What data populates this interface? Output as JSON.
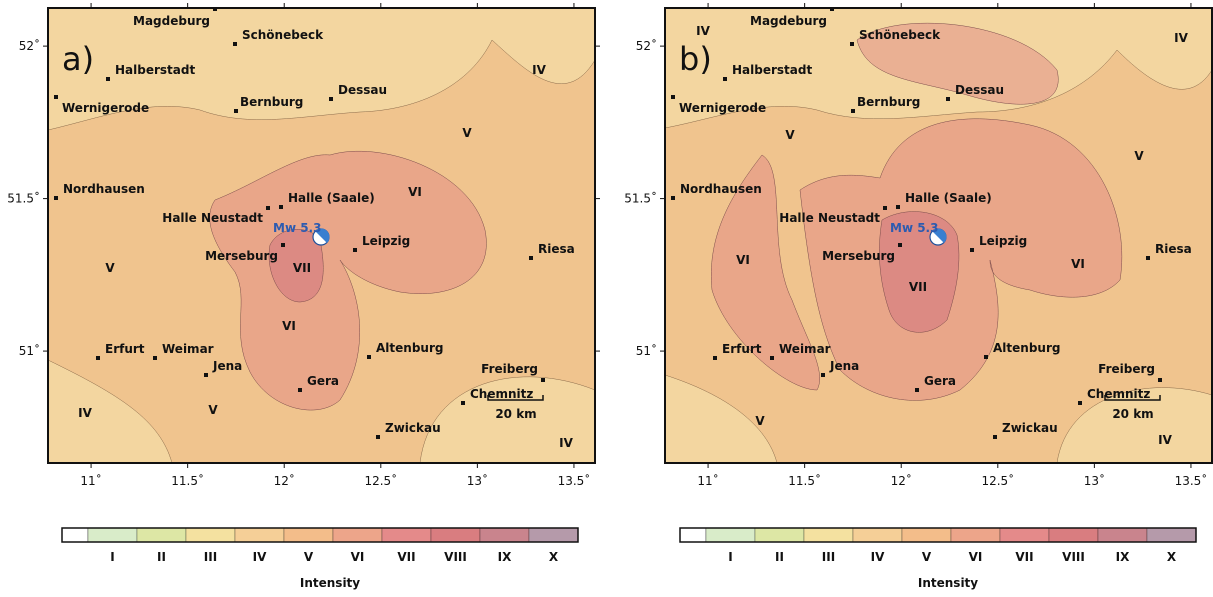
{
  "panels": [
    {
      "label": "a)",
      "event": "Mw 5.3",
      "scalebar": "20 km",
      "zone_labels": [
        "IV",
        "V",
        "VI",
        "VII",
        "V",
        "VI",
        "IV",
        "V",
        "IV"
      ]
    },
    {
      "label": "b)",
      "event": "Mw 5.3",
      "scalebar": "20 km",
      "zone_labels": [
        "IV",
        "IV",
        "V",
        "V",
        "VI",
        "VI",
        "VII",
        "V",
        "IV"
      ]
    }
  ],
  "cities": [
    "Magdeburg",
    "Schönebeck",
    "Halberstadt",
    "Wernigerode",
    "Bernburg",
    "Dessau",
    "Nordhausen",
    "Halle (Saale)",
    "Halle Neustadt",
    "Merseburg",
    "Leipzig",
    "Riesa",
    "Erfurt",
    "Weimar",
    "Jena",
    "Altenburg",
    "Gera",
    "Zwickau",
    "Chemnitz",
    "Freiberg"
  ],
  "map": {
    "xlim": [
      10.777,
      13.609
    ],
    "ylim": [
      50.633,
      52.125
    ],
    "xticks": [
      {
        "value": 11,
        "label": "11˚"
      },
      {
        "value": 11.5,
        "label": "11.5˚"
      },
      {
        "value": 12,
        "label": "12˚"
      },
      {
        "value": 12.5,
        "label": "12.5˚"
      },
      {
        "value": 13,
        "label": "13˚"
      },
      {
        "value": 13.5,
        "label": "13.5˚"
      }
    ],
    "yticks": [
      {
        "value": 51,
        "label": "51˚"
      },
      {
        "value": 51.5,
        "label": "51.5˚"
      },
      {
        "value": 52,
        "label": "52˚"
      }
    ]
  },
  "colorbar": {
    "title": "Intensity",
    "blank_color": "#ffffff",
    "classes": [
      "I",
      "II",
      "III",
      "IV",
      "V",
      "VI",
      "VII",
      "VIII",
      "IX",
      "X"
    ],
    "colors": [
      "#d9ecc9",
      "#dde7a5",
      "#f4e1a0",
      "#f5cf97",
      "#f3bd8a",
      "#eda58a",
      "#e48a8a",
      "#d97d80",
      "#c9848d",
      "#b59aaa"
    ]
  }
}
